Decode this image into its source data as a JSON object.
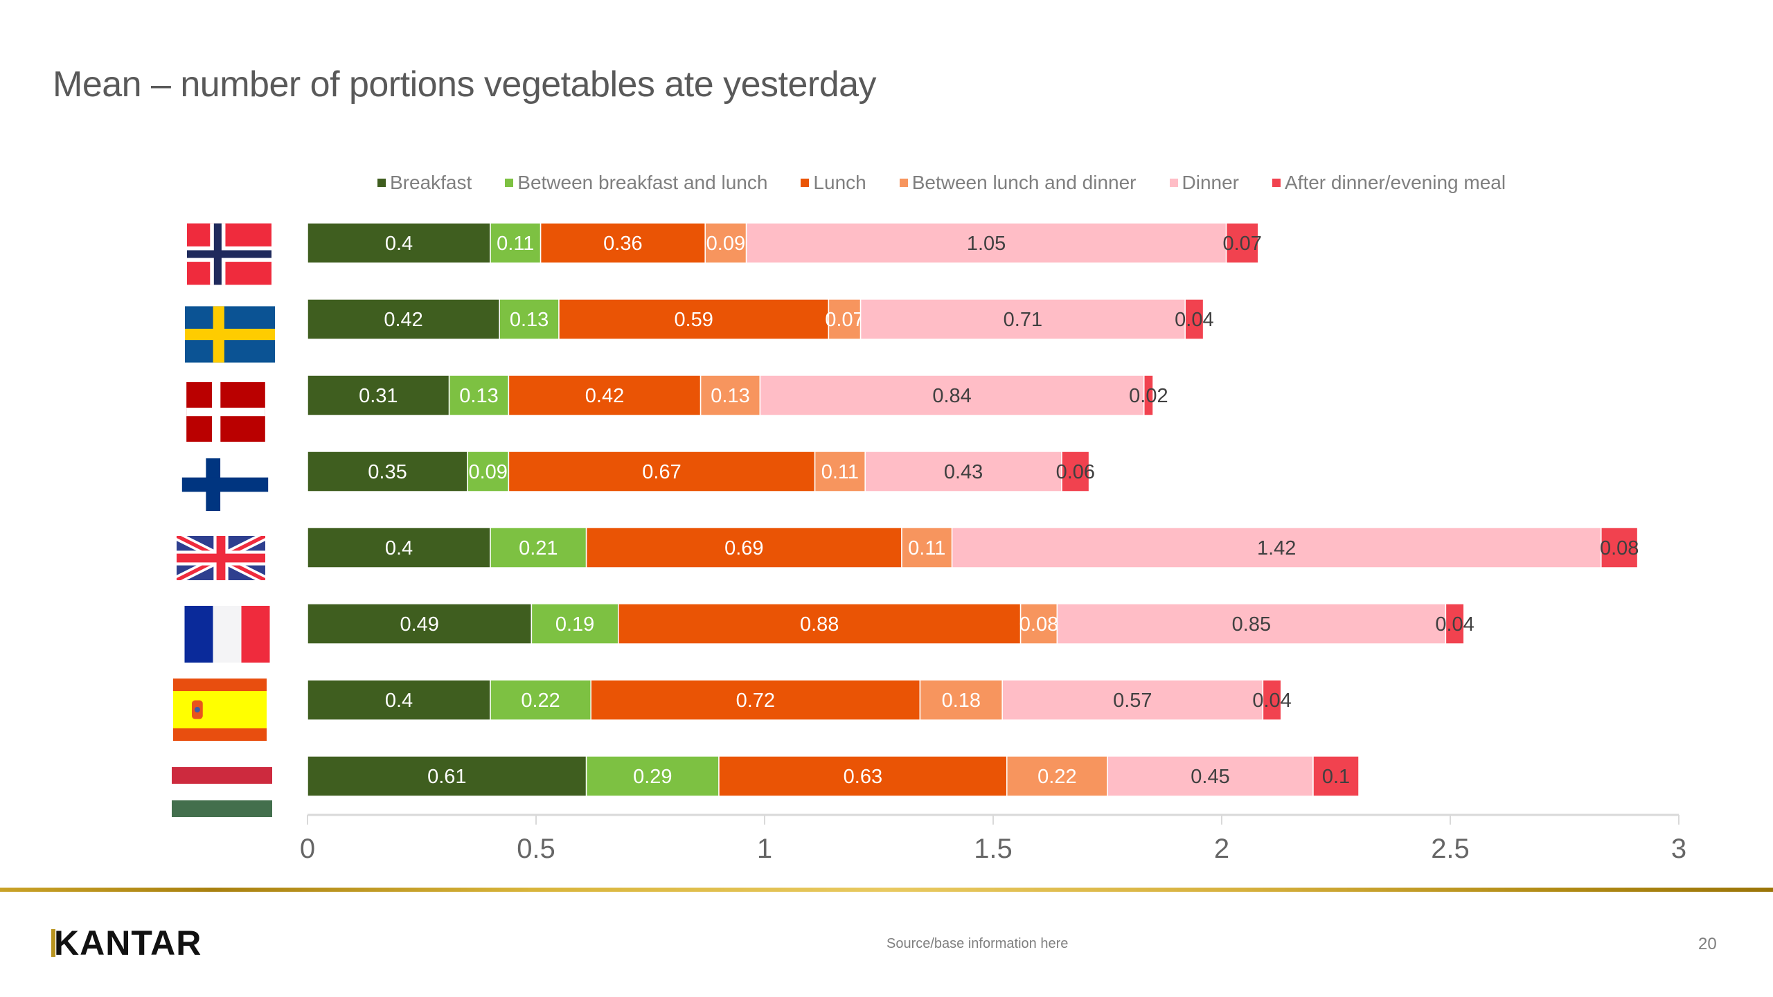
{
  "title": "Mean – number of portions vegetables ate yesterday",
  "footer": {
    "logo": "KANTAR",
    "source": "Source/base information here",
    "page_number": "20"
  },
  "colors": {
    "breakfast": "#3f5e1f",
    "between_breakfast_lunch": "#7dc142",
    "lunch": "#ea5405",
    "between_lunch_dinner": "#f7955e",
    "dinner": "#ffbdc6",
    "after_dinner": "#f1424f",
    "footer_rule": "#c9a227"
  },
  "chart_data": {
    "type": "bar",
    "orientation": "horizontal",
    "stacked": true,
    "title": "Mean – number of portions vegetables ate yesterday",
    "xlabel": "",
    "ylabel": "",
    "xlim": [
      0,
      3
    ],
    "x_ticks": [
      "0",
      "0.5",
      "1",
      "1.5",
      "2",
      "2.5",
      "3"
    ],
    "x_tick_values": [
      0,
      0.5,
      1,
      1.5,
      2,
      2.5,
      3
    ],
    "grid": false,
    "legend_position": "top",
    "categories": [
      "Norway",
      "Sweden",
      "Denmark",
      "Finland",
      "United Kingdom",
      "France",
      "Spain",
      "Hungary"
    ],
    "category_icons": [
      "flag-norway-icon",
      "flag-sweden-icon",
      "flag-denmark-icon",
      "flag-finland-icon",
      "flag-uk-icon",
      "flag-france-icon",
      "flag-spain-icon",
      "flag-hungary-icon"
    ],
    "series": [
      {
        "name": "Breakfast",
        "color": "#3f5e1f",
        "label_color": "#ffffff",
        "values": [
          0.4,
          0.42,
          0.31,
          0.35,
          0.4,
          0.49,
          0.4,
          0.61
        ]
      },
      {
        "name": "Between breakfast and lunch",
        "color": "#7dc142",
        "label_color": "#ffffff",
        "values": [
          0.11,
          0.13,
          0.13,
          0.09,
          0.21,
          0.19,
          0.22,
          0.29
        ]
      },
      {
        "name": "Lunch",
        "color": "#ea5405",
        "label_color": "#ffffff",
        "values": [
          0.36,
          0.59,
          0.42,
          0.67,
          0.69,
          0.88,
          0.72,
          0.63
        ]
      },
      {
        "name": "Between lunch and dinner",
        "color": "#f7955e",
        "label_color": "#ffffff",
        "values": [
          0.09,
          0.07,
          0.13,
          0.11,
          0.11,
          0.08,
          0.18,
          0.22
        ]
      },
      {
        "name": "Dinner",
        "color": "#ffbdc6",
        "label_color": "#404040",
        "values": [
          1.05,
          0.71,
          0.84,
          0.43,
          1.42,
          0.85,
          0.57,
          0.45
        ]
      },
      {
        "name": "After dinner/evening meal",
        "color": "#f1424f",
        "label_color": "#404040",
        "values": [
          0.07,
          0.04,
          0.02,
          0.06,
          0.08,
          0.04,
          0.04,
          0.1
        ]
      }
    ]
  }
}
